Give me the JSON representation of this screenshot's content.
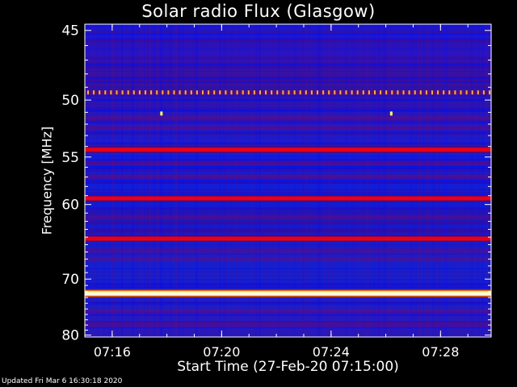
{
  "chart_data": {
    "type": "heatmap",
    "title": "Solar radio Flux (Glasgow)",
    "ylabel": "Frequency [MHz]",
    "xlabel": "Start Time (27-Feb-20 07:15:00)",
    "y_ticks": [
      "45",
      "50",
      "55",
      "60",
      "70",
      "80"
    ],
    "x_ticks": [
      "07:16",
      "07:20",
      "07:24",
      "07:28"
    ],
    "y_scale": "reciprocal",
    "grid": false,
    "colors": {
      "background": "#000000",
      "low": "#0c14c8",
      "mid": "#b0005a",
      "high": "#ffff99"
    },
    "bright_bands_mhz": [
      {
        "freq": 49.4,
        "level": "pulsed"
      },
      {
        "freq": 54.3,
        "level": "high"
      },
      {
        "freq": 59.3,
        "level": "high"
      },
      {
        "freq": 64.2,
        "level": "high"
      },
      {
        "freq": 72.3,
        "level": "saturated"
      }
    ]
  },
  "footer": {
    "updated": "Updated Fri Mar  6 16:30:18 2020"
  }
}
